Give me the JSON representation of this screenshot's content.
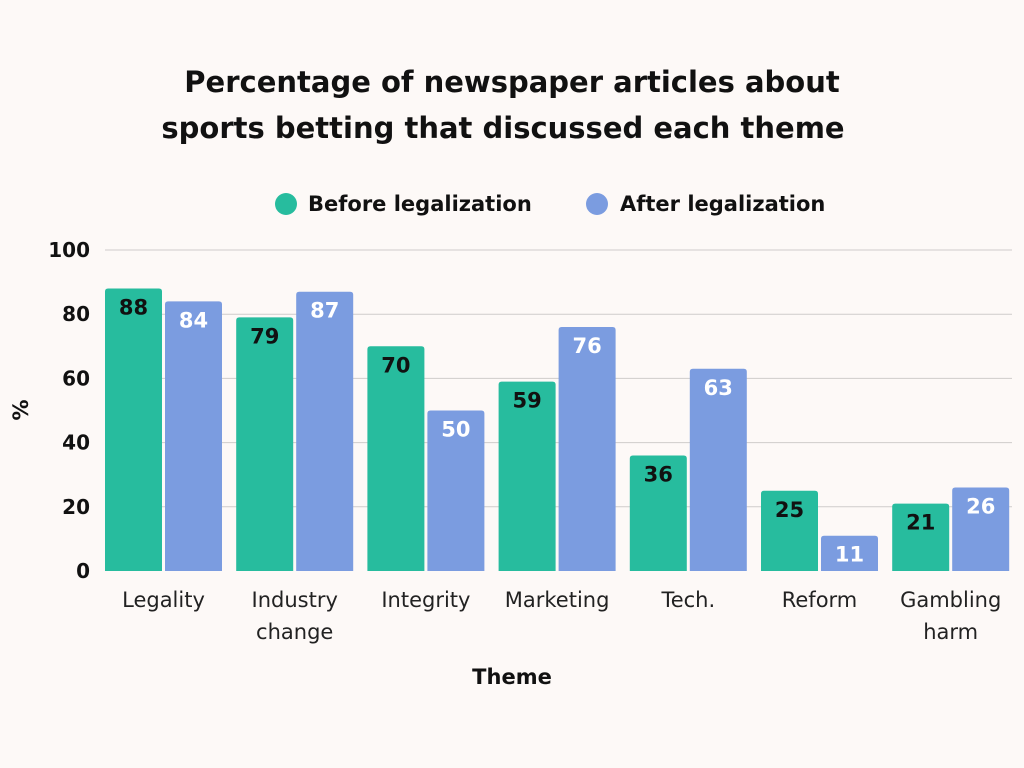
{
  "chart_data": {
    "type": "bar",
    "title": [
      "Percentage of newspaper articles about",
      "sports betting that discussed each theme"
    ],
    "xlabel": "Theme",
    "ylabel": "%",
    "ylim": [
      0,
      100
    ],
    "yticks": [
      0,
      20,
      40,
      60,
      80,
      100
    ],
    "grid": true,
    "legend_position": "top",
    "categories": [
      [
        "Legality"
      ],
      [
        "Industry",
        "change"
      ],
      [
        "Integrity"
      ],
      [
        "Marketing"
      ],
      [
        "Tech."
      ],
      [
        "Reform"
      ],
      [
        "Gambling",
        "harm"
      ]
    ],
    "series": [
      {
        "name": "Before legalization",
        "color": "#27bc9e",
        "label_color": "#111111",
        "values": [
          88,
          79,
          70,
          59,
          36,
          25,
          21
        ]
      },
      {
        "name": "After legalization",
        "color": "#7b9ce0",
        "label_color": "#ffffff",
        "values": [
          84,
          87,
          50,
          76,
          63,
          11,
          26
        ]
      }
    ]
  }
}
